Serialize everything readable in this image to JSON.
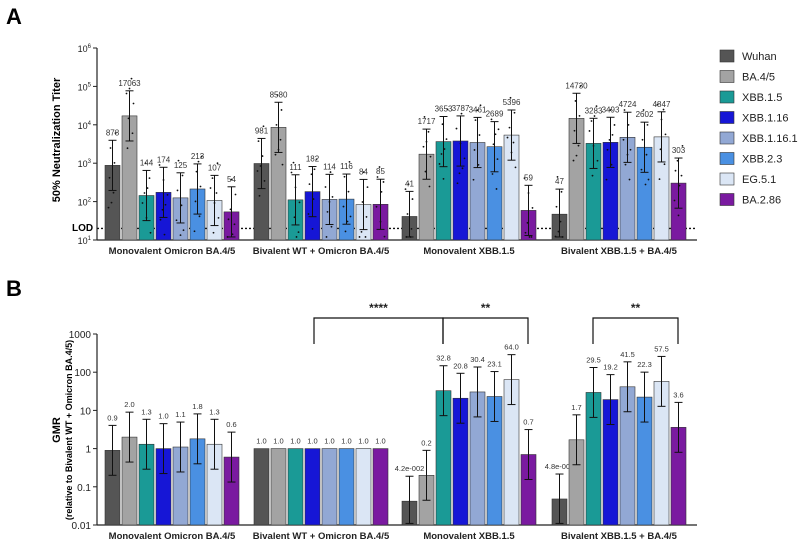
{
  "legend": [
    {
      "name": "Wuhan",
      "color": "#555555"
    },
    {
      "name": "BA.4/5",
      "color": "#a3a3a3"
    },
    {
      "name": "XBB.1.5",
      "color": "#1a9a96"
    },
    {
      "name": "XBB.1.16",
      "color": "#1616d6"
    },
    {
      "name": "XBB.1.16.1",
      "color": "#92a8d4"
    },
    {
      "name": "XBB.2.3",
      "color": "#4a90e2"
    },
    {
      "name": "EG.5.1",
      "color": "#dbe6f5"
    },
    {
      "name": "BA.2.86",
      "color": "#7a1aa0"
    }
  ],
  "groups": [
    "Monovalent Omicron BA.4/5",
    "Bivalent WT + Omicron BA.4/5",
    "Monovalent XBB.1.5",
    "Bivalent XBB.1.5 + BA.4/5"
  ],
  "panelA": {
    "label": "A",
    "ylabel": "50% Neutralization Titer",
    "lod_label": "LOD",
    "tick_labels": [
      "10^1",
      "10^2",
      "10^3",
      "10^4",
      "10^5",
      "10^6"
    ],
    "chart_data": {
      "type": "bar",
      "title": "",
      "yscale": "log",
      "ylim": [
        10,
        1000000
      ],
      "lod": 20,
      "categories": [
        "Monovalent Omicron BA.4/5",
        "Bivalent WT + Omicron BA.4/5",
        "Monovalent XBB.1.5",
        "Bivalent XBB.1.5 + BA.4/5"
      ],
      "series": [
        {
          "name": "Wuhan",
          "values": [
            878,
            981,
            41,
            47
          ],
          "labels": [
            "878",
            "981",
            "41",
            "47"
          ]
        },
        {
          "name": "BA.4/5",
          "values": [
            17063,
            8580,
            1717,
            14730
          ],
          "labels": [
            "17063",
            "8580",
            "1717",
            "14730"
          ]
        },
        {
          "name": "XBB.1.5",
          "values": [
            144,
            111,
            3653,
            3283
          ],
          "labels": [
            "144",
            "111",
            "3653",
            "3283"
          ]
        },
        {
          "name": "XBB.1.16",
          "values": [
            174,
            182,
            3787,
            3493
          ],
          "labels": [
            "174",
            "182",
            "3787",
            "3493"
          ]
        },
        {
          "name": "XBB.1.16.1",
          "values": [
            125,
            114,
            3461,
            4724
          ],
          "labels": [
            "125",
            "114",
            "3461",
            "4724"
          ]
        },
        {
          "name": "XBB.2.3",
          "values": [
            213,
            116,
            2689,
            2602
          ],
          "labels": [
            "213",
            "116",
            "2689",
            "2602"
          ]
        },
        {
          "name": "EG.5.1",
          "values": [
            107,
            84,
            5396,
            4847
          ],
          "labels": [
            "107",
            "84",
            "5396",
            "4847"
          ]
        },
        {
          "name": "BA.2.86",
          "values": [
            54,
            85,
            59,
            303
          ],
          "labels": [
            "54",
            "85",
            "59",
            "303"
          ]
        }
      ]
    }
  },
  "panelB": {
    "label": "B",
    "ylabel": "GMR",
    "ylabel2": "(relative to Bivalent WT + Omicron BA.4/5)",
    "tick_labels": [
      "0.01",
      "0.1",
      "1",
      "10",
      "100",
      "1000"
    ],
    "significance": [
      "****",
      "**",
      "**"
    ],
    "chart_data": {
      "type": "bar",
      "title": "",
      "yscale": "log",
      "ylim": [
        0.01,
        1000
      ],
      "categories": [
        "Monovalent Omicron BA.4/5",
        "Bivalent WT + Omicron BA.4/5",
        "Monovalent XBB.1.5",
        "Bivalent XBB.1.5 + BA.4/5"
      ],
      "series": [
        {
          "name": "Wuhan",
          "values": [
            0.9,
            1.0,
            0.042,
            0.048
          ],
          "labels": [
            "0.9",
            "1.0",
            "4.2e-002",
            "4.8e-002"
          ]
        },
        {
          "name": "BA.4/5",
          "values": [
            2.0,
            1.0,
            0.2,
            1.7
          ],
          "labels": [
            "2.0",
            "1.0",
            "0.2",
            "1.7"
          ]
        },
        {
          "name": "XBB.1.5",
          "values": [
            1.3,
            1.0,
            32.8,
            29.5
          ],
          "labels": [
            "1.3",
            "1.0",
            "32.8",
            "29.5"
          ]
        },
        {
          "name": "XBB.1.16",
          "values": [
            1.0,
            1.0,
            20.8,
            19.2
          ],
          "labels": [
            "1.0",
            "1.0",
            "20.8",
            "19.2"
          ]
        },
        {
          "name": "XBB.1.16.1",
          "values": [
            1.1,
            1.0,
            30.4,
            41.5
          ],
          "labels": [
            "1.1",
            "1.0",
            "30.4",
            "41.5"
          ]
        },
        {
          "name": "XBB.2.3",
          "values": [
            1.8,
            1.0,
            23.1,
            22.3
          ],
          "labels": [
            "1.8",
            "1.0",
            "23.1",
            "22.3"
          ]
        },
        {
          "name": "EG.5.1",
          "values": [
            1.3,
            1.0,
            64.0,
            57.5
          ],
          "labels": [
            "1.3",
            "1.0",
            "64.0",
            "57.5"
          ]
        },
        {
          "name": "BA.2.86",
          "values": [
            0.6,
            1.0,
            0.7,
            3.6
          ],
          "labels": [
            "0.6",
            "1.0",
            "0.7",
            "3.6"
          ]
        }
      ]
    }
  }
}
